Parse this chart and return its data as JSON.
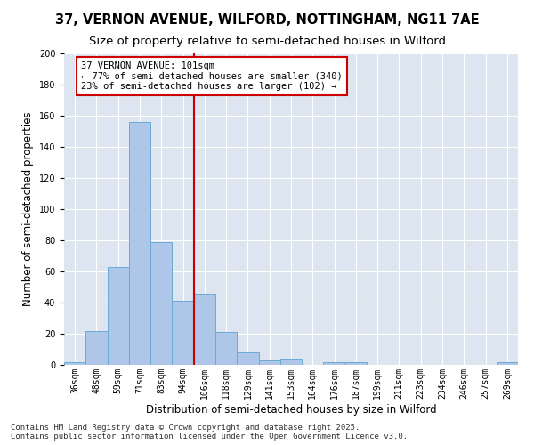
{
  "title_line1": "37, VERNON AVENUE, WILFORD, NOTTINGHAM, NG11 7AE",
  "title_line2": "Size of property relative to semi-detached houses in Wilford",
  "xlabel": "Distribution of semi-detached houses by size in Wilford",
  "ylabel": "Number of semi-detached properties",
  "categories": [
    "36sqm",
    "48sqm",
    "59sqm",
    "71sqm",
    "83sqm",
    "94sqm",
    "106sqm",
    "118sqm",
    "129sqm",
    "141sqm",
    "153sqm",
    "164sqm",
    "176sqm",
    "187sqm",
    "199sqm",
    "211sqm",
    "223sqm",
    "234sqm",
    "246sqm",
    "257sqm",
    "269sqm"
  ],
  "values": [
    2,
    22,
    63,
    156,
    79,
    41,
    46,
    21,
    8,
    3,
    4,
    0,
    2,
    2,
    0,
    0,
    0,
    0,
    0,
    0,
    2
  ],
  "bar_color": "#aec6e8",
  "bar_edge_color": "#6aaad4",
  "vline_color": "#cc0000",
  "vline_x": 5.5,
  "annotation_line1": "37 VERNON AVENUE: 101sqm",
  "annotation_line2": "← 77% of semi-detached houses are smaller (340)",
  "annotation_line3": "23% of semi-detached houses are larger (102) →",
  "annotation_box_color": "#ffffff",
  "annotation_box_edge_color": "#cc0000",
  "ylim": [
    0,
    200
  ],
  "yticks": [
    0,
    20,
    40,
    60,
    80,
    100,
    120,
    140,
    160,
    180,
    200
  ],
  "background_color": "#dde5f0",
  "footer_text": "Contains HM Land Registry data © Crown copyright and database right 2025.\nContains public sector information licensed under the Open Government Licence v3.0.",
  "title_fontsize": 10.5,
  "subtitle_fontsize": 9.5,
  "axis_label_fontsize": 8.5,
  "tick_fontsize": 7,
  "annotation_fontsize": 7.5,
  "footer_fontsize": 6.5
}
